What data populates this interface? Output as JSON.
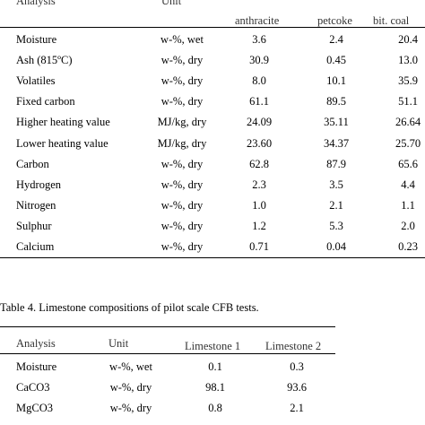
{
  "table3": {
    "headers": {
      "analysis": "Analysis",
      "unit": "Unit",
      "col1": "anthracite",
      "col2": "petcoke",
      "col3": "bit. coal"
    },
    "rows": [
      {
        "label": "Moisture",
        "unit": "w-%, wet",
        "v1": "3.6",
        "v2": "2.4",
        "v3": "20.4"
      },
      {
        "label": "Ash (815ºC)",
        "unit": "w-%, dry",
        "v1": "30.9",
        "v2": "0.45",
        "v3": "13.0"
      },
      {
        "label": "Volatiles",
        "unit": "w-%, dry",
        "v1": "8.0",
        "v2": "10.1",
        "v3": "35.9"
      },
      {
        "label": "Fixed carbon",
        "unit": "w-%, dry",
        "v1": "61.1",
        "v2": "89.5",
        "v3": "51.1"
      },
      {
        "label": "Higher heating value",
        "unit": "MJ/kg, dry",
        "v1": "24.09",
        "v2": "35.11",
        "v3": "26.64"
      },
      {
        "label": "Lower heating value",
        "unit": "MJ/kg, dry",
        "v1": "23.60",
        "v2": "34.37",
        "v3": "25.70"
      },
      {
        "label": "Carbon",
        "unit": "w-%, dry",
        "v1": "62.8",
        "v2": "87.9",
        "v3": "65.6"
      },
      {
        "label": "Hydrogen",
        "unit": "w-%, dry",
        "v1": "2.3",
        "v2": "3.5",
        "v3": "4.4"
      },
      {
        "label": "Nitrogen",
        "unit": "w-%, dry",
        "v1": "1.0",
        "v2": "2.1",
        "v3": "1.1"
      },
      {
        "label": "Sulphur",
        "unit": "w-%, dry",
        "v1": "1.2",
        "v2": "5.3",
        "v3": "2.0"
      },
      {
        "label": "Calcium",
        "unit": "w-%, dry",
        "v1": "0.71",
        "v2": "0.04",
        "v3": "0.23"
      }
    ]
  },
  "table4": {
    "caption": "Table 4. Limestone compositions of pilot scale CFB tests.",
    "headers": {
      "analysis": "Analysis",
      "unit": "Unit",
      "col1": "Limestone 1",
      "col2": "Limestone 2"
    },
    "rows": [
      {
        "label": "Moisture",
        "unit": "w-%, wet",
        "v1": "0.1",
        "v2": "0.3"
      },
      {
        "label": "CaCO3",
        "unit": "w-%, dry",
        "v1": "98.1",
        "v2": "93.6"
      },
      {
        "label": "MgCO3",
        "unit": "w-%, dry",
        "v1": "0.8",
        "v2": "2.1"
      }
    ]
  }
}
